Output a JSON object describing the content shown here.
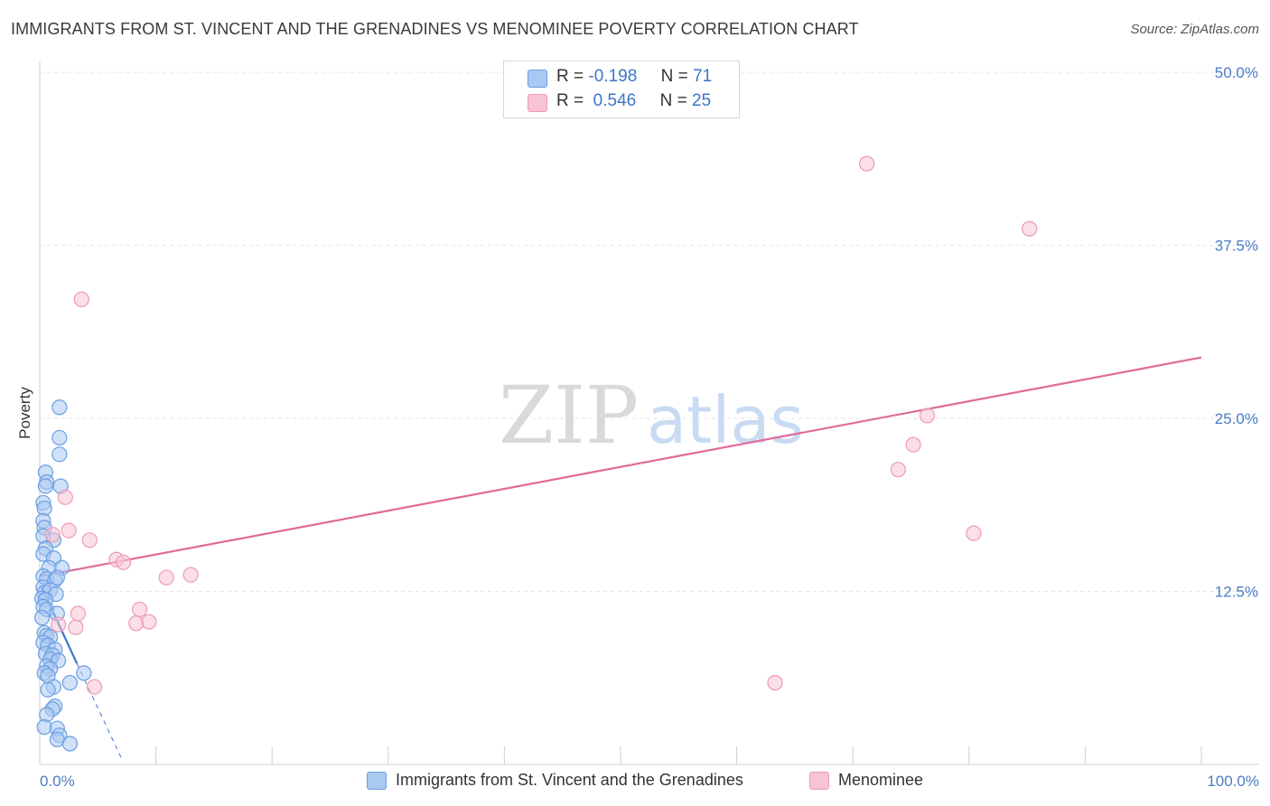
{
  "header": {
    "title": "IMMIGRANTS FROM ST. VINCENT AND THE GRENADINES VS MENOMINEE POVERTY CORRELATION CHART",
    "source": "Source: ZipAtlas.com"
  },
  "watermark": {
    "zip": "ZIP",
    "atlas": "atlas"
  },
  "legend": {
    "rows": [
      {
        "r_label": "R =",
        "r_value": "-0.198",
        "n_label": "N =",
        "n_value": "71"
      },
      {
        "r_label": "R =",
        "r_value": " 0.546",
        "n_label": "N =",
        "n_value": "25"
      }
    ]
  },
  "colors": {
    "blue_fill": "#a9c8f2",
    "blue_stroke": "#6a9ee0",
    "blue_line": "#3a76c9",
    "pink_fill": "#f7c4d4",
    "pink_stroke": "#ee9ab4",
    "pink_line": "#e06a98",
    "tick_text": "#4a7cc4",
    "grid": "#e6e6e6"
  },
  "chart_data": {
    "type": "scatter",
    "title": "IMMIGRANTS FROM ST. VINCENT AND THE GRENADINES VS MENOMINEE POVERTY CORRELATION CHART",
    "xlabel": "",
    "ylabel": "Poverty",
    "xlim": [
      0,
      100
    ],
    "ylim": [
      0,
      50
    ],
    "x_tick_labels": [
      "0.0%",
      "100.0%"
    ],
    "y_ticks": [
      12.5,
      25.0,
      37.5,
      50.0
    ],
    "y_tick_labels": [
      "12.5%",
      "25.0%",
      "37.5%",
      "50.0%"
    ],
    "grid": true,
    "legend_position": "top-center",
    "series": [
      {
        "name": "Immigrants from St. Vincent and the Grenadines",
        "color": "#a9c8f2",
        "R": -0.198,
        "N": 71,
        "trend_solid": [
          [
            0.1,
            12.9
          ],
          [
            3.2,
            7.3
          ]
        ],
        "trend_dashed": [
          [
            3.2,
            7.3
          ],
          [
            7.0,
            0.5
          ]
        ],
        "points": [
          [
            1.7,
            25.8
          ],
          [
            1.7,
            23.6
          ],
          [
            1.7,
            22.4
          ],
          [
            0.5,
            21.1
          ],
          [
            0.6,
            20.4
          ],
          [
            0.5,
            20.1
          ],
          [
            1.8,
            20.1
          ],
          [
            0.3,
            18.9
          ],
          [
            0.4,
            18.5
          ],
          [
            0.3,
            17.6
          ],
          [
            0.4,
            17.1
          ],
          [
            0.3,
            16.5
          ],
          [
            1.2,
            16.2
          ],
          [
            0.5,
            15.6
          ],
          [
            0.3,
            15.2
          ],
          [
            1.2,
            14.9
          ],
          [
            0.8,
            14.2
          ],
          [
            1.9,
            14.2
          ],
          [
            0.3,
            13.6
          ],
          [
            0.6,
            13.4
          ],
          [
            1.3,
            13.3
          ],
          [
            1.5,
            13.5
          ],
          [
            0.3,
            12.8
          ],
          [
            0.4,
            12.4
          ],
          [
            0.9,
            12.6
          ],
          [
            1.4,
            12.3
          ],
          [
            0.2,
            12.0
          ],
          [
            0.5,
            11.9
          ],
          [
            0.3,
            11.4
          ],
          [
            0.6,
            11.2
          ],
          [
            1.5,
            10.9
          ],
          [
            0.2,
            10.6
          ],
          [
            0.4,
            9.5
          ],
          [
            0.6,
            9.3
          ],
          [
            0.9,
            9.2
          ],
          [
            0.3,
            8.8
          ],
          [
            0.7,
            8.6
          ],
          [
            1.3,
            8.3
          ],
          [
            0.5,
            8.0
          ],
          [
            1.1,
            7.9
          ],
          [
            0.9,
            7.6
          ],
          [
            1.6,
            7.5
          ],
          [
            0.6,
            7.1
          ],
          [
            0.9,
            6.9
          ],
          [
            0.4,
            6.6
          ],
          [
            0.7,
            6.4
          ],
          [
            3.8,
            6.6
          ],
          [
            2.6,
            5.9
          ],
          [
            1.2,
            5.6
          ],
          [
            0.7,
            5.4
          ],
          [
            1.3,
            4.2
          ],
          [
            1.1,
            4.0
          ],
          [
            0.6,
            3.6
          ],
          [
            0.4,
            2.7
          ],
          [
            1.5,
            2.6
          ],
          [
            1.7,
            2.1
          ],
          [
            1.5,
            1.8
          ],
          [
            2.6,
            1.5
          ]
        ]
      },
      {
        "name": "Menominee",
        "color": "#f7c4d4",
        "R": 0.546,
        "N": 25,
        "trend": [
          [
            0.1,
            13.6
          ],
          [
            100.0,
            29.4
          ]
        ],
        "points": [
          [
            71.2,
            43.4
          ],
          [
            85.2,
            38.7
          ],
          [
            3.6,
            33.6
          ],
          [
            76.4,
            25.2
          ],
          [
            75.2,
            23.1
          ],
          [
            73.9,
            21.3
          ],
          [
            2.2,
            19.3
          ],
          [
            2.5,
            16.9
          ],
          [
            80.4,
            16.7
          ],
          [
            4.3,
            16.2
          ],
          [
            1.1,
            16.6
          ],
          [
            6.6,
            14.8
          ],
          [
            7.2,
            14.6
          ],
          [
            13.0,
            13.7
          ],
          [
            10.9,
            13.5
          ],
          [
            3.3,
            10.9
          ],
          [
            8.6,
            11.2
          ],
          [
            8.3,
            10.2
          ],
          [
            9.4,
            10.3
          ],
          [
            3.1,
            9.9
          ],
          [
            1.6,
            10.1
          ],
          [
            4.7,
            5.6
          ],
          [
            63.3,
            5.9
          ]
        ]
      }
    ]
  },
  "bottom_legend": {
    "items": [
      {
        "label": "Immigrants from St. Vincent and the Grenadines"
      },
      {
        "label": "Menominee"
      }
    ]
  }
}
